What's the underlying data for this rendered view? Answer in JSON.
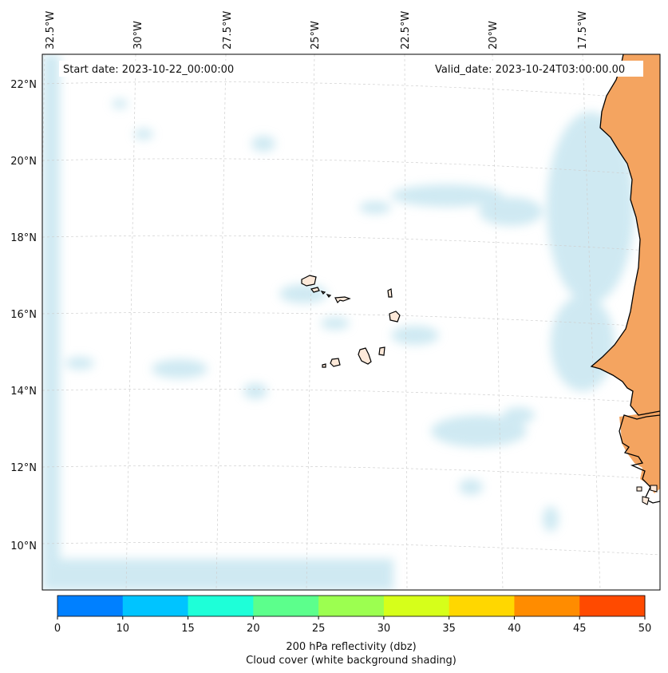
{
  "map": {
    "start_date": "Start date: 2023-10-22_00:00:00",
    "valid_date": "Valid_date: 2023-10-24T03:00:00.00",
    "lon_labels": [
      "32.5°W",
      "30°W",
      "27.5°W",
      "25°W",
      "22.5°W",
      "20°W",
      "17.5°W"
    ],
    "lat_labels": [
      "22°N",
      "20°N",
      "18°N",
      "16°N",
      "14°N",
      "12°N",
      "10°N"
    ],
    "land_color": "#f4a460",
    "cloud_color": "#a8d8e8",
    "coast_color": "#000000"
  },
  "colorbar": {
    "ticks": [
      "0",
      "10",
      "15",
      "20",
      "25",
      "30",
      "35",
      "40",
      "45",
      "50"
    ],
    "colors": [
      "#0080ff",
      "#00c4ff",
      "#1effd8",
      "#5cff8c",
      "#9cff50",
      "#d6ff1a",
      "#ffd700",
      "#ff8c00",
      "#ff4a00"
    ],
    "label_line1": "200 hPa reflectivity (dbz)",
    "label_line2": "Cloud cover (white background shading)"
  }
}
